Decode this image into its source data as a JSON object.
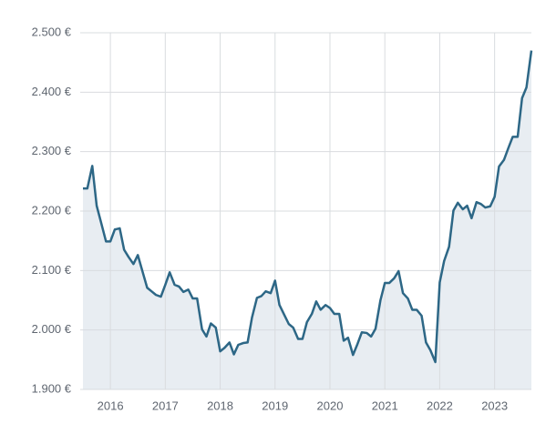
{
  "chart_data": {
    "type": "area",
    "x": [
      2015.5,
      2015.58,
      2015.67,
      2015.75,
      2015.83,
      2015.92,
      2016,
      2016.08,
      2016.17,
      2016.25,
      2016.33,
      2016.42,
      2016.5,
      2016.58,
      2016.67,
      2016.75,
      2016.83,
      2016.92,
      2017,
      2017.08,
      2017.17,
      2017.25,
      2017.33,
      2017.42,
      2017.5,
      2017.58,
      2017.67,
      2017.75,
      2017.83,
      2017.92,
      2018,
      2018.08,
      2018.17,
      2018.25,
      2018.33,
      2018.42,
      2018.5,
      2018.58,
      2018.67,
      2018.75,
      2018.83,
      2018.92,
      2019,
      2019.08,
      2019.17,
      2019.25,
      2019.33,
      2019.42,
      2019.5,
      2019.58,
      2019.67,
      2019.75,
      2019.83,
      2019.92,
      2020,
      2020.08,
      2020.17,
      2020.25,
      2020.33,
      2020.42,
      2020.5,
      2020.58,
      2020.67,
      2020.75,
      2020.83,
      2020.92,
      2021,
      2021.08,
      2021.17,
      2021.25,
      2021.33,
      2021.42,
      2021.5,
      2021.58,
      2021.67,
      2021.75,
      2021.83,
      2021.92,
      2022,
      2022.08,
      2022.17,
      2022.25,
      2022.33,
      2022.42,
      2022.5,
      2022.58,
      2022.67,
      2022.75,
      2022.83,
      2022.92,
      2023,
      2023.08,
      2023.17,
      2023.25,
      2023.33,
      2023.42,
      2023.5,
      2023.58,
      2023.67
    ],
    "values": [
      2238,
      2238,
      2276,
      2209,
      2181,
      2149,
      2149,
      2169,
      2171,
      2135,
      2123,
      2111,
      2126,
      2100,
      2071,
      2065,
      2059,
      2056,
      2076,
      2097,
      2076,
      2073,
      2064,
      2068,
      2053,
      2053,
      2001,
      1989,
      2011,
      2004,
      1964,
      1970,
      1979,
      1959,
      1975,
      1978,
      1979,
      2021,
      2054,
      2057,
      2065,
      2062,
      2083,
      2042,
      2025,
      2010,
      2004,
      1985,
      1985,
      2013,
      2027,
      2048,
      2034,
      2042,
      2037,
      2027,
      2027,
      1982,
      1987,
      1958,
      1976,
      1996,
      1995,
      1989,
      2002,
      2050,
      2079,
      2079,
      2087,
      2099,
      2062,
      2053,
      2034,
      2034,
      2024,
      1979,
      1966,
      1946,
      2080,
      2116,
      2140,
      2201,
      2214,
      2203,
      2209,
      2188,
      2215,
      2212,
      2206,
      2208,
      2224,
      2275,
      2286,
      2306,
      2325,
      2325,
      2390,
      2408,
      2470
    ],
    "color": "#2d6786",
    "fill_color": "#e8edf2",
    "xlim": [
      2015.5,
      2023.67
    ],
    "xticks": [
      2016,
      2017,
      2018,
      2019,
      2020,
      2021,
      2022,
      2023
    ],
    "ylim": [
      1900,
      2500
    ],
    "yticks": [
      {
        "value": 1900,
        "label": "1.900 €"
      },
      {
        "value": 2000,
        "label": "2.000 €"
      },
      {
        "value": 2100,
        "label": "2.100 €"
      },
      {
        "value": 2200,
        "label": "2.200 €"
      },
      {
        "value": 2300,
        "label": "2.300 €"
      },
      {
        "value": 2400,
        "label": "2.400 €"
      },
      {
        "value": 2500,
        "label": "2.500 €"
      }
    ],
    "grid": true
  }
}
